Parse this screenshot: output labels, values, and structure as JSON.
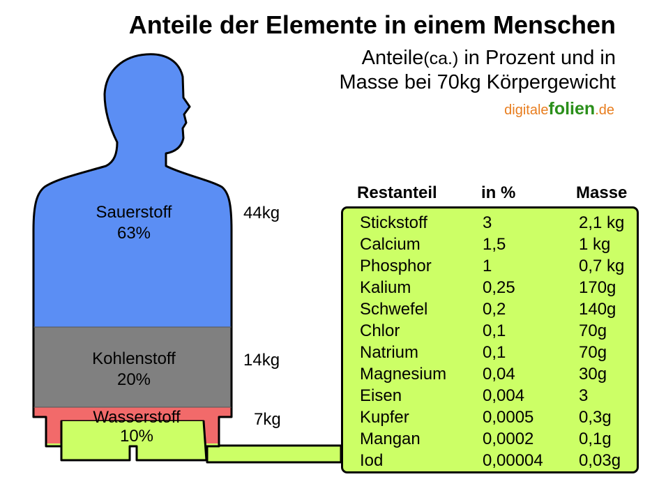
{
  "title": "Anteile der Elemente in einem Menschen",
  "subtitle": {
    "line1_prefix": "Anteile",
    "line1_ca": "(ca.)",
    "line1_suffix": " in Prozent und in",
    "line2": "Masse bei 70kg Körpergewicht"
  },
  "brand": {
    "part1": "digitale",
    "part2": "folien",
    "part3": ".de"
  },
  "colors": {
    "oxygen": "#5b8ef4",
    "carbon": "#808080",
    "hydrogen": "#f26a6a",
    "rest": "#ccff66",
    "brand_orange": "#e87d1e",
    "brand_green": "#2a8f1a"
  },
  "segments": [
    {
      "name": "Sauerstoff",
      "percent": "63%",
      "mass": "44kg"
    },
    {
      "name": "Kohlenstoff",
      "percent": "20%",
      "mass": "14kg"
    },
    {
      "name": "Wasserstoff",
      "percent": "10%",
      "mass": "7kg"
    }
  ],
  "table": {
    "headers": [
      "Restanteil",
      "in %",
      "Masse"
    ],
    "rows": [
      [
        "Stickstoff",
        "3",
        "2,1 kg"
      ],
      [
        "Calcium",
        "1,5",
        "1 kg"
      ],
      [
        "Phosphor",
        "1",
        "0,7 kg"
      ],
      [
        "Kalium",
        "0,25",
        "170g"
      ],
      [
        "Schwefel",
        "0,2",
        "140g"
      ],
      [
        "Chlor",
        "0,1",
        "70g"
      ],
      [
        "Natrium",
        "0,1",
        "70g"
      ],
      [
        "Magnesium",
        "0,04",
        "30g"
      ],
      [
        "Eisen",
        "0,004",
        "3"
      ],
      [
        "Kupfer",
        "0,0005",
        "0,3g"
      ],
      [
        "Mangan",
        "0,0002",
        "0,1g"
      ],
      [
        "Iod",
        "0,00004",
        "0,03g"
      ]
    ]
  }
}
